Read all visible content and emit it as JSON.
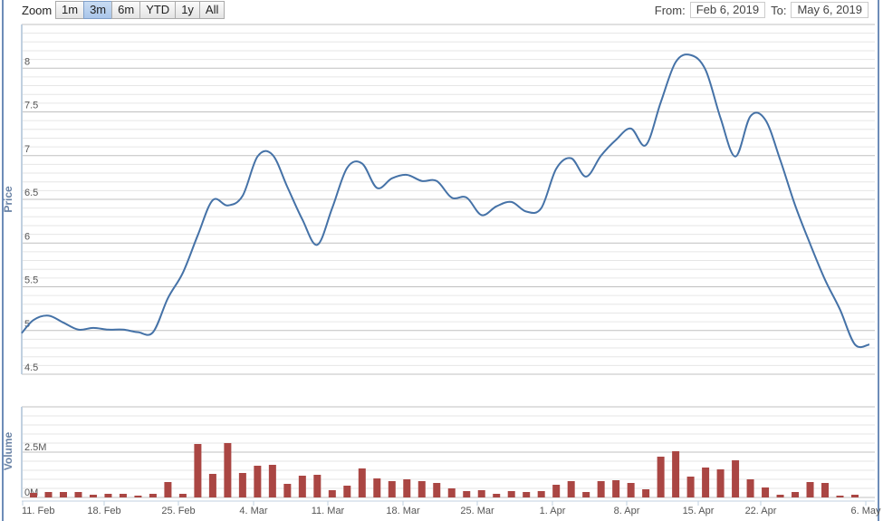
{
  "range_selector": {
    "zoom_label": "Zoom",
    "buttons": [
      "1m",
      "3m",
      "6m",
      "YTD",
      "1y",
      "All"
    ],
    "selected": "3m",
    "from_label": "From:",
    "from_value": "Feb 6, 2019",
    "to_label": "To:",
    "to_value": "May 6, 2019"
  },
  "chart_data": [
    {
      "type": "line",
      "ylabel": "Price",
      "ylim": [
        4.5,
        8.5
      ],
      "yticks": [
        "4.5",
        "5",
        "5.5",
        "6",
        "6.5",
        "7",
        "7.5",
        "8"
      ],
      "grid": true,
      "color": "#4572a7",
      "values": [
        5.12,
        5.17,
        5.09,
        5.01,
        5.03,
        5.01,
        5.01,
        4.98,
        4.98,
        5.37,
        5.66,
        6.09,
        6.49,
        6.43,
        6.54,
        6.99,
        7.01,
        6.64,
        6.27,
        5.98,
        6.4,
        6.86,
        6.91,
        6.63,
        6.74,
        6.78,
        6.71,
        6.71,
        6.52,
        6.52,
        6.32,
        6.42,
        6.47,
        6.36,
        6.4,
        6.85,
        6.97,
        6.76,
        7.0,
        7.18,
        7.31,
        7.12,
        7.61,
        8.07,
        8.15,
        7.98,
        7.43,
        6.99,
        7.45,
        7.41,
        6.95,
        6.43,
        5.99,
        5.58,
        5.24,
        4.84
      ]
    },
    {
      "type": "bar",
      "ylabel": "Volume",
      "ylim": [
        0,
        5000000
      ],
      "yticks": [
        "0M",
        "2.5M"
      ],
      "grid": true,
      "color": "#aa4643",
      "values": [
        250000,
        300000,
        300000,
        300000,
        150000,
        200000,
        200000,
        100000,
        200000,
        850000,
        200000,
        2950000,
        1300000,
        3000000,
        1350000,
        1750000,
        1800000,
        750000,
        1200000,
        1250000,
        400000,
        650000,
        1600000,
        1050000,
        900000,
        1000000,
        900000,
        800000,
        500000,
        350000,
        400000,
        200000,
        350000,
        300000,
        350000,
        700000,
        900000,
        300000,
        900000,
        950000,
        800000,
        450000,
        2250000,
        2550000,
        1150000,
        1650000,
        1550000,
        2050000,
        1000000,
        550000,
        150000,
        300000,
        850000,
        800000,
        100000,
        150000
      ]
    }
  ],
  "x_ticks": [
    "11. Feb",
    "18. Feb",
    "25. Feb",
    "4. Mar",
    "11. Mar",
    "18. Mar",
    "25. Mar",
    "1. Apr",
    "8. Apr",
    "15. Apr",
    "22. Apr",
    "6. May"
  ]
}
